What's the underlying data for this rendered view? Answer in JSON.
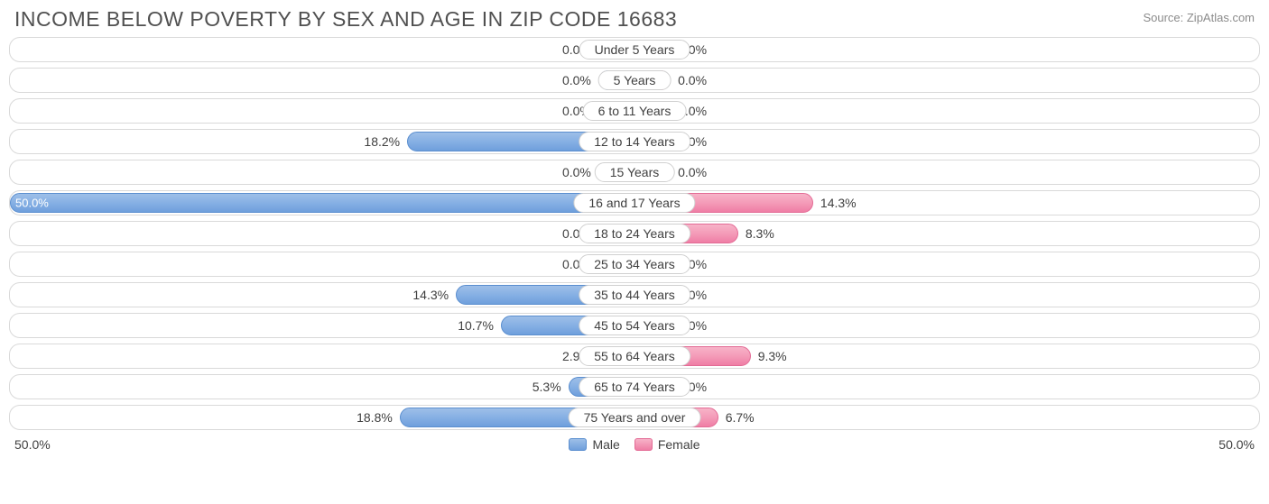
{
  "title": "INCOME BELOW POVERTY BY SEX AND AGE IN ZIP CODE 16683",
  "source": "Source: ZipAtlas.com",
  "axis_max": 50.0,
  "axis_label_left": "50.0%",
  "axis_label_right": "50.0%",
  "min_bar_pct": 5.8,
  "colors": {
    "male_fill_top": "#9ebfe8",
    "male_fill_mid": "#86b0e4",
    "male_fill_bot": "#6f9fdc",
    "male_border": "#5a8ecf",
    "female_fill_top": "#f7b3c8",
    "female_fill_mid": "#f49bb8",
    "female_fill_bot": "#ef7ea5",
    "female_border": "#e36b95",
    "track_border": "#d9d9d9",
    "text": "#404040",
    "title_text": "#505050",
    "source_text": "#8b8b8b",
    "background": "#ffffff"
  },
  "typography": {
    "title_fontsize": 23,
    "label_fontsize": 14,
    "source_fontsize": 13
  },
  "legend": {
    "male": "Male",
    "female": "Female"
  },
  "rows": [
    {
      "category": "Under 5 Years",
      "male": 0.0,
      "female": 0.0,
      "male_label": "0.0%",
      "female_label": "0.0%"
    },
    {
      "category": "5 Years",
      "male": 0.0,
      "female": 0.0,
      "male_label": "0.0%",
      "female_label": "0.0%"
    },
    {
      "category": "6 to 11 Years",
      "male": 0.0,
      "female": 0.0,
      "male_label": "0.0%",
      "female_label": "0.0%"
    },
    {
      "category": "12 to 14 Years",
      "male": 18.2,
      "female": 0.0,
      "male_label": "18.2%",
      "female_label": "0.0%"
    },
    {
      "category": "15 Years",
      "male": 0.0,
      "female": 0.0,
      "male_label": "0.0%",
      "female_label": "0.0%"
    },
    {
      "category": "16 and 17 Years",
      "male": 50.0,
      "female": 14.3,
      "male_label": "50.0%",
      "female_label": "14.3%",
      "male_label_inside": true
    },
    {
      "category": "18 to 24 Years",
      "male": 0.0,
      "female": 8.3,
      "male_label": "0.0%",
      "female_label": "8.3%"
    },
    {
      "category": "25 to 34 Years",
      "male": 0.0,
      "female": 0.0,
      "male_label": "0.0%",
      "female_label": "0.0%"
    },
    {
      "category": "35 to 44 Years",
      "male": 14.3,
      "female": 0.0,
      "male_label": "14.3%",
      "female_label": "0.0%"
    },
    {
      "category": "45 to 54 Years",
      "male": 10.7,
      "female": 0.0,
      "male_label": "10.7%",
      "female_label": "0.0%"
    },
    {
      "category": "55 to 64 Years",
      "male": 2.9,
      "female": 9.3,
      "male_label": "2.9%",
      "female_label": "9.3%"
    },
    {
      "category": "65 to 74 Years",
      "male": 5.3,
      "female": 0.0,
      "male_label": "5.3%",
      "female_label": "0.0%"
    },
    {
      "category": "75 Years and over",
      "male": 18.8,
      "female": 6.7,
      "male_label": "18.8%",
      "female_label": "6.7%"
    }
  ]
}
